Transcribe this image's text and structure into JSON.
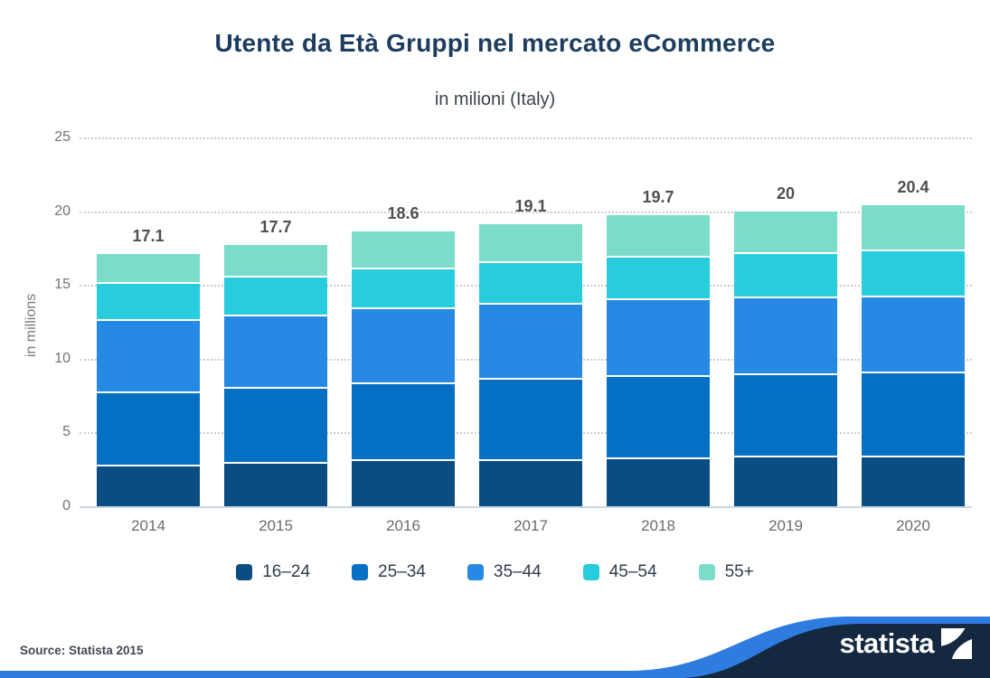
{
  "header": {
    "title": "Utente da Età Gruppi nel mercato eCommerce",
    "subtitle": "in milioni (Italy)"
  },
  "chart_data": {
    "type": "bar",
    "stacked": true,
    "title": "Utente da Età Gruppi nel mercato eCommerce",
    "subtitle": "in milioni (Italy)",
    "categories": [
      "2014",
      "2015",
      "2016",
      "2017",
      "2018",
      "2019",
      "2020"
    ],
    "series": [
      {
        "name": "16–24",
        "color": "#0a4d82",
        "values": [
          2.8,
          3.0,
          3.2,
          3.2,
          3.3,
          3.4,
          3.4
        ]
      },
      {
        "name": "25–34",
        "color": "#0670c4",
        "values": [
          5.0,
          5.1,
          5.2,
          5.5,
          5.6,
          5.6,
          5.7
        ]
      },
      {
        "name": "35–44",
        "color": "#268ae5",
        "values": [
          4.9,
          4.9,
          5.1,
          5.1,
          5.2,
          5.2,
          5.2
        ]
      },
      {
        "name": "45–54",
        "color": "#27cddd",
        "values": [
          2.5,
          2.6,
          2.7,
          2.8,
          2.9,
          3.0,
          3.1
        ]
      },
      {
        "name": "55+",
        "color": "#7cdcca",
        "values": [
          1.9,
          2.1,
          2.4,
          2.5,
          2.7,
          2.8,
          3.0
        ]
      }
    ],
    "total_labels": [
      "17.1",
      "17.7",
      "18.6",
      "19.1",
      "19.7",
      "20",
      "20.4"
    ],
    "ylabel": "in millions",
    "ylim": [
      0,
      25
    ],
    "yticks": [
      0,
      5,
      10,
      15,
      20,
      25
    ],
    "grid": "horizontal-dotted",
    "legend_position": "bottom"
  },
  "footer": {
    "source": "Source: Statista 2015",
    "brand": "statista"
  },
  "colors": {
    "accent_blue": "#2e7ce0",
    "brand_navy": "#14293f",
    "title_navy": "#1d3d5f"
  }
}
